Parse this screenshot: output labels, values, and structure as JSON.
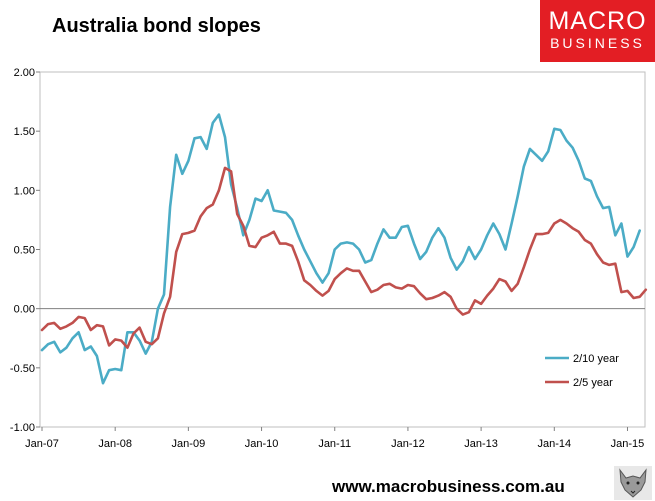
{
  "header": {
    "title": "Australia bond slopes"
  },
  "logo": {
    "line1": "MACRO",
    "line2": "BUSINESS"
  },
  "footer": {
    "url": "www.macrobusiness.com.au"
  },
  "colors": {
    "series_2_10": "#4bacc6",
    "series_2_5": "#c0504d",
    "logo_bg": "#e31e24"
  },
  "chart_data": {
    "type": "line",
    "title": "Australia bond slopes",
    "xlabel": "",
    "ylabel": "",
    "ylim": [
      -1.0,
      2.0
    ],
    "yticks": [
      -1.0,
      -0.5,
      0.0,
      0.5,
      1.0,
      1.5,
      2.0
    ],
    "ytick_labels": [
      "-1.00",
      "-0.50",
      "0.00",
      "0.50",
      "1.00",
      "1.50",
      "2.00"
    ],
    "xticks": [
      "Jan-07",
      "Jan-08",
      "Jan-09",
      "Jan-10",
      "Jan-11",
      "Jan-12",
      "Jan-13",
      "Jan-14",
      "Jan-15"
    ],
    "x_start": "Jan-07",
    "x_step": "month",
    "grid": false,
    "legend_position": "bottom-right",
    "series": [
      {
        "name": "2/10 year",
        "color": "#4bacc6",
        "values": [
          -0.35,
          -0.3,
          -0.28,
          -0.37,
          -0.33,
          -0.25,
          -0.2,
          -0.35,
          -0.32,
          -0.4,
          -0.63,
          -0.52,
          -0.51,
          -0.52,
          -0.2,
          -0.2,
          -0.27,
          -0.38,
          -0.28,
          0.0,
          0.12,
          0.86,
          1.3,
          1.14,
          1.25,
          1.44,
          1.45,
          1.35,
          1.57,
          1.64,
          1.45,
          1.05,
          0.85,
          0.62,
          0.75,
          0.93,
          0.91,
          1.0,
          0.83,
          0.82,
          0.81,
          0.75,
          0.62,
          0.5,
          0.4,
          0.3,
          0.22,
          0.3,
          0.5,
          0.55,
          0.56,
          0.55,
          0.5,
          0.39,
          0.41,
          0.55,
          0.67,
          0.6,
          0.6,
          0.69,
          0.7,
          0.55,
          0.42,
          0.48,
          0.6,
          0.68,
          0.6,
          0.43,
          0.33,
          0.4,
          0.52,
          0.42,
          0.5,
          0.62,
          0.72,
          0.63,
          0.5,
          0.72,
          0.95,
          1.2,
          1.35,
          1.3,
          1.25,
          1.33,
          1.52,
          1.51,
          1.42,
          1.36,
          1.25,
          1.1,
          1.08,
          0.95,
          0.85,
          0.86,
          0.62,
          0.72,
          0.44,
          0.52,
          0.66
        ]
      },
      {
        "name": "2/5 year",
        "color": "#c0504d",
        "values": [
          -0.18,
          -0.13,
          -0.12,
          -0.17,
          -0.15,
          -0.12,
          -0.07,
          -0.08,
          -0.18,
          -0.14,
          -0.15,
          -0.31,
          -0.26,
          -0.27,
          -0.33,
          -0.21,
          -0.16,
          -0.28,
          -0.3,
          -0.25,
          -0.04,
          0.1,
          0.48,
          0.63,
          0.64,
          0.66,
          0.78,
          0.85,
          0.88,
          1.0,
          1.19,
          1.16,
          0.8,
          0.7,
          0.53,
          0.52,
          0.6,
          0.62,
          0.65,
          0.55,
          0.55,
          0.53,
          0.4,
          0.24,
          0.2,
          0.15,
          0.11,
          0.15,
          0.25,
          0.3,
          0.34,
          0.32,
          0.32,
          0.23,
          0.14,
          0.16,
          0.2,
          0.21,
          0.18,
          0.17,
          0.2,
          0.19,
          0.13,
          0.08,
          0.09,
          0.11,
          0.14,
          0.1,
          0.0,
          -0.05,
          -0.03,
          0.07,
          0.04,
          0.11,
          0.17,
          0.25,
          0.23,
          0.15,
          0.21,
          0.35,
          0.5,
          0.63,
          0.63,
          0.64,
          0.72,
          0.75,
          0.72,
          0.68,
          0.65,
          0.58,
          0.55,
          0.46,
          0.39,
          0.37,
          0.38,
          0.14,
          0.15,
          0.09,
          0.1,
          0.16
        ]
      }
    ]
  }
}
